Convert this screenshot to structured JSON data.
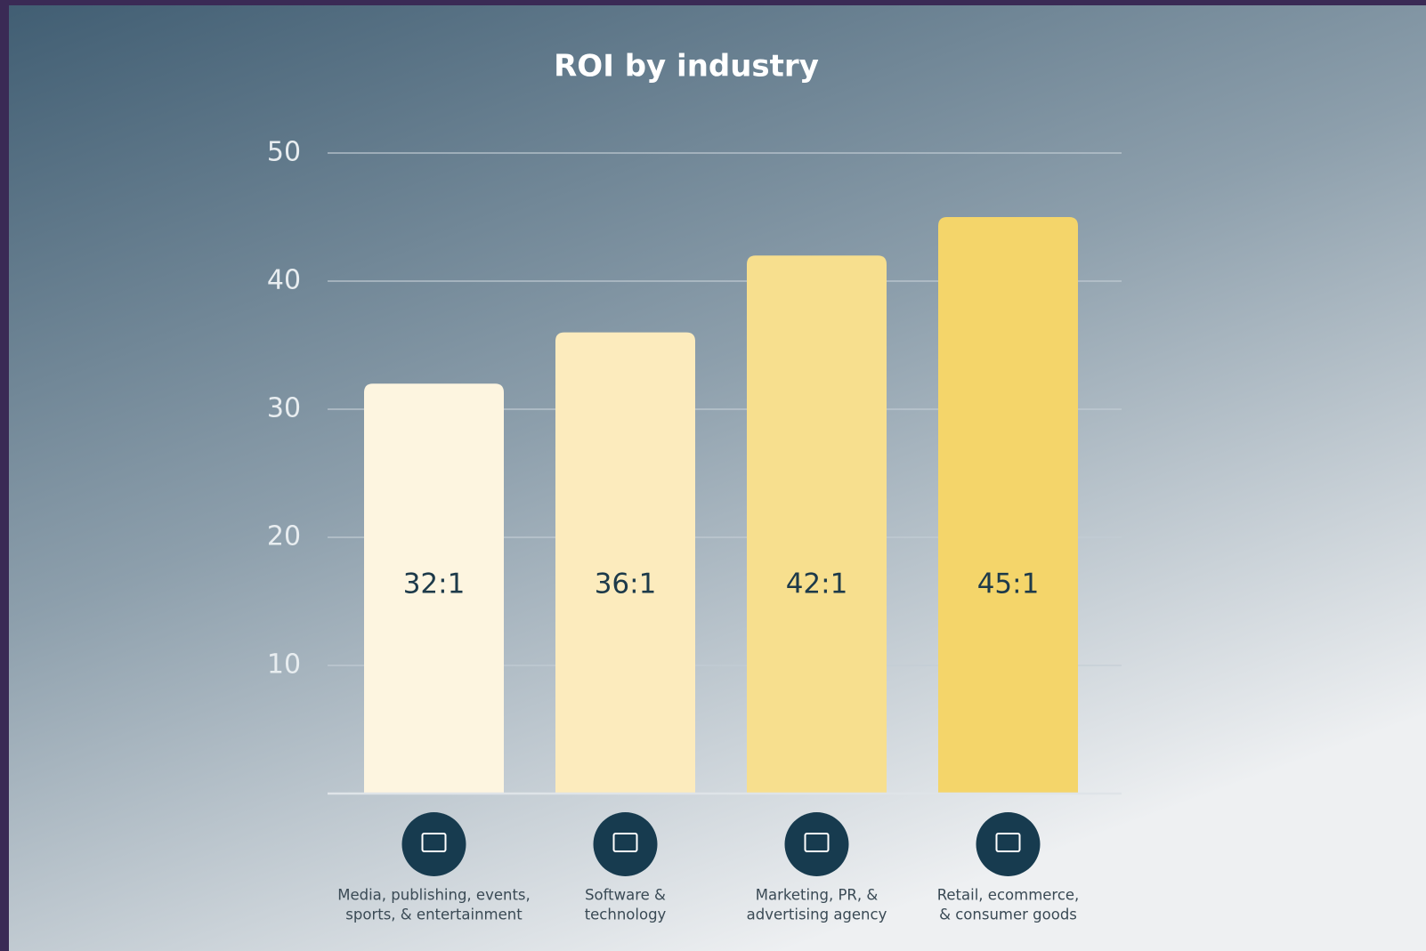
{
  "chart_data": {
    "type": "bar",
    "title": "ROI by industry",
    "categories": [
      [
        "Media, publishing, events,",
        "sports, & entertainment"
      ],
      [
        "Software &",
        "technology"
      ],
      [
        "Marketing, PR, &",
        "advertising agency"
      ],
      [
        "Retail, ecommerce,",
        "& consumer goods"
      ]
    ],
    "values": [
      32,
      36,
      42,
      45
    ],
    "value_labels": [
      "32:1",
      "36:1",
      "42:1",
      "45:1"
    ],
    "colors": [
      "#fdf5e0",
      "#fcebbd",
      "#f7df8e",
      "#f4d56a"
    ],
    "ylim": [
      0,
      50
    ],
    "yticks": [
      10,
      20,
      30,
      40,
      50
    ],
    "grid": true
  }
}
